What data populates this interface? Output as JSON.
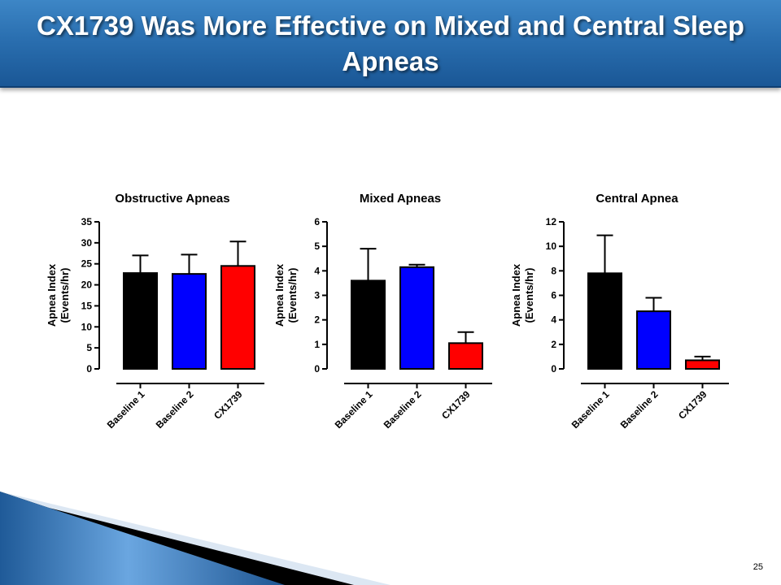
{
  "slide": {
    "title": "CX1739 Was More Effective on Mixed and Central Sleep Apneas",
    "page_number": "25"
  },
  "colors": {
    "baseline1": "#000000",
    "baseline2": "#0000ff",
    "cx1739": "#ff0000"
  },
  "chart_data": [
    {
      "type": "bar",
      "title": "Obstructive Apneas",
      "ylabel": "Apnea Index (Events/hr)",
      "ylabel_lines": [
        "Apnea Index",
        "(Events/hr)"
      ],
      "categories": [
        "Baseline 1",
        "Baseline 2",
        "CX1739"
      ],
      "values": [
        22.8,
        22.6,
        24.5
      ],
      "error_upper": [
        27.0,
        27.2,
        30.3
      ],
      "ylim": [
        0,
        35
      ],
      "yticks": [
        0,
        5,
        10,
        15,
        20,
        25,
        30,
        35
      ]
    },
    {
      "type": "bar",
      "title": "Mixed Apneas",
      "ylabel": "Apnea Index (Events/hr)",
      "ylabel_lines": [
        "Apnea Index",
        "(Events/hr)"
      ],
      "categories": [
        "Baseline 1",
        "Baseline 2",
        "CX1739"
      ],
      "values": [
        3.6,
        4.15,
        1.05
      ],
      "error_upper": [
        4.9,
        4.25,
        1.5
      ],
      "ylim": [
        0,
        6
      ],
      "yticks": [
        0,
        1,
        2,
        3,
        4,
        5,
        6
      ]
    },
    {
      "type": "bar",
      "title": "Central  Apnea",
      "ylabel": "Apnea Index (Events/hr)",
      "ylabel_lines": [
        "Apnea Index",
        "(Events/hr)"
      ],
      "categories": [
        "Baseline 1",
        "Baseline 2",
        "CX1739"
      ],
      "values": [
        7.8,
        4.7,
        0.7
      ],
      "error_upper": [
        10.9,
        5.8,
        1.0
      ],
      "ylim": [
        0,
        12
      ],
      "yticks": [
        0,
        2,
        4,
        6,
        8,
        10,
        12
      ]
    }
  ]
}
